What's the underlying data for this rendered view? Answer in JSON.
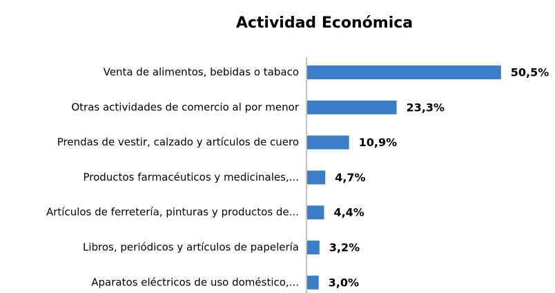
{
  "chart_data": {
    "type": "barh",
    "title": "Actividad Económica",
    "categories": [
      "Venta de alimentos, bebidas o tabaco",
      "Otras actividades de comercio al por menor",
      "Prendas de vestir, calzado y artículos de cuero",
      "Productos farmacéuticos y medicinales,...",
      "Artículos de ferretería, pinturas y productos de...",
      "Libros, periódicos y artículos de papelería",
      "Aparatos eléctricos de uso doméstico,..."
    ],
    "values": [
      50.5,
      23.3,
      10.9,
      4.7,
      4.4,
      3.2,
      3.0
    ],
    "value_labels": [
      "50,5%",
      "23,3%",
      "10,9%",
      "4,7%",
      "4,4%",
      "3,2%",
      "3,0%"
    ],
    "color": "#3b7ec8"
  }
}
